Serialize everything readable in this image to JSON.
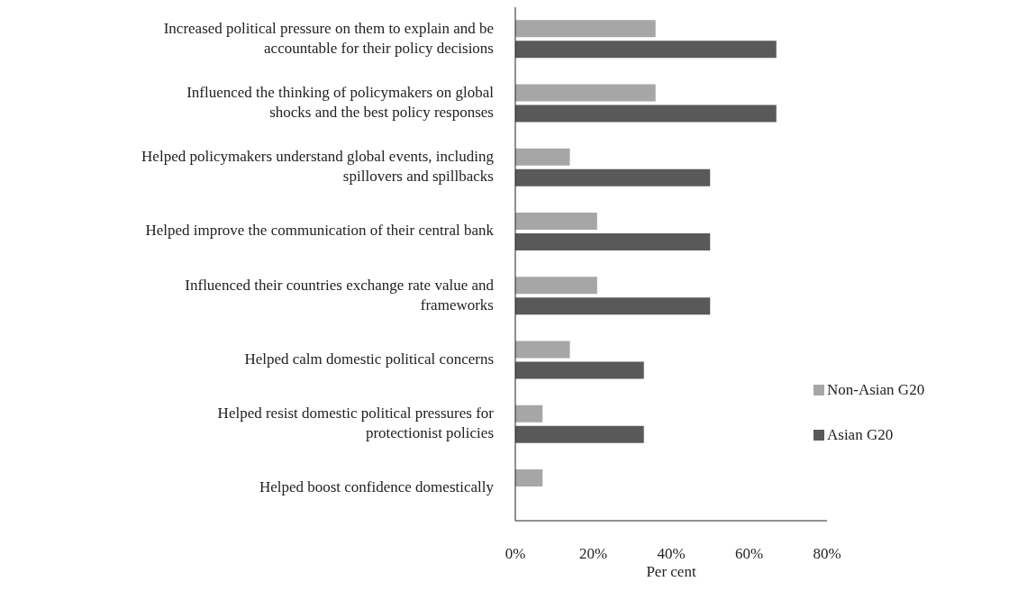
{
  "chart_data": {
    "type": "bar",
    "orientation": "horizontal",
    "xlabel": "Per cent",
    "categories": [
      "Increased political pressure on them to explain and be accountable for their policy decisions",
      "Influenced the thinking of policymakers on global shocks and the best policy responses",
      "Helped policymakers understand global events, including spillovers and spillbacks",
      "Helped improve the communication of their central bank",
      "Influenced their countries exchange rate value and frameworks",
      "Helped calm domestic political concerns",
      "Helped resist domestic political pressures for protectionist policies",
      "Helped boost confidence domestically"
    ],
    "series": [
      {
        "name": "Non-Asian G20",
        "color": "#a6a6a6",
        "values": [
          36,
          36,
          14,
          21,
          21,
          14,
          7,
          7
        ]
      },
      {
        "name": "Asian G20",
        "color": "#595959",
        "values": [
          67,
          67,
          50,
          50,
          50,
          33,
          33,
          0
        ]
      }
    ],
    "xlim": [
      0,
      80
    ],
    "xticks": [
      {
        "value": 0,
        "label": "0%"
      },
      {
        "value": 20,
        "label": "20%"
      },
      {
        "value": 40,
        "label": "40%"
      },
      {
        "value": 60,
        "label": "60%"
      },
      {
        "value": 80,
        "label": "80%"
      }
    ],
    "grid": false,
    "legend": "right"
  }
}
